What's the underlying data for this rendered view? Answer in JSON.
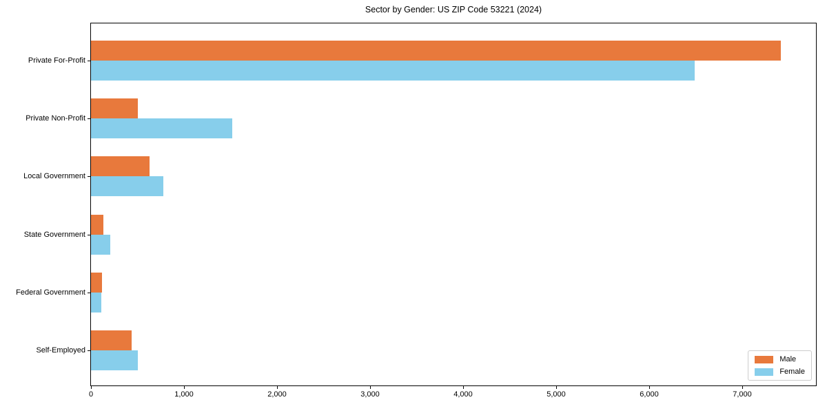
{
  "chart_data": {
    "type": "bar",
    "orientation": "horizontal",
    "title": "Sector by Gender: US ZIP Code 53221 (2024)",
    "categories": [
      "Private For-Profit",
      "Private Non-Profit",
      "Local Government",
      "State Government",
      "Federal Government",
      "Self-Employed"
    ],
    "series": [
      {
        "name": "Male",
        "color": "#E8793C",
        "values": [
          7410,
          500,
          630,
          135,
          120,
          440
        ]
      },
      {
        "name": "Female",
        "color": "#87CEEB",
        "values": [
          6490,
          1520,
          775,
          205,
          110,
          500
        ]
      }
    ],
    "xlabel": "",
    "ylabel": "",
    "xlim": [
      0,
      7790
    ],
    "x_ticks": [
      0,
      1000,
      2000,
      3000,
      4000,
      5000,
      6000,
      7000
    ],
    "x_tick_labels": [
      "0",
      "1,000",
      "2,000",
      "3,000",
      "4,000",
      "5,000",
      "6,000",
      "7,000"
    ],
    "grid": false,
    "legend_position": "lower right",
    "axis_color": "#000000",
    "background_color": "#ffffff"
  }
}
